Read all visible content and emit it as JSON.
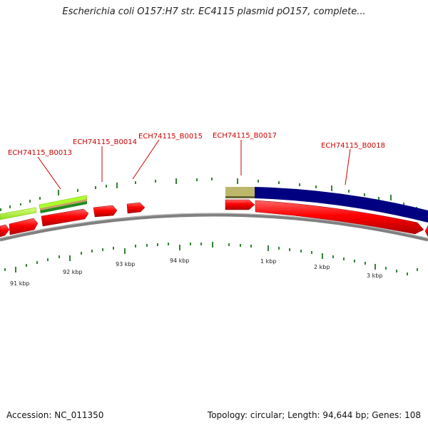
{
  "title": "Escherichia coli O157:H7 str. EC4115 plasmid pO157, complete...",
  "footer": {
    "accession": "Accession: NC_011350",
    "summary": "Topology: circular; Length: 94,644 bp; Genes: 108"
  },
  "genes": [
    {
      "id": "ECH74115_B0013"
    },
    {
      "id": "ECH74115_B0014"
    },
    {
      "id": "ECH74115_B0015"
    },
    {
      "id": "ECH74115_B0017"
    },
    {
      "id": "ECH74115_B0018"
    }
  ],
  "ticks": [
    {
      "label": "91 kbp"
    },
    {
      "label": "92 kbp"
    },
    {
      "label": "93 kbp"
    },
    {
      "label": "94 kbp"
    },
    {
      "label": "1 kbp"
    },
    {
      "label": "2 kbp"
    },
    {
      "label": "3 kbp"
    }
  ],
  "colors": {
    "cds": "#ff0000",
    "feature_navy": "#000080",
    "feature_tan": "#bdb76b",
    "feature_lime": "#adff2f",
    "backbone": "#808080",
    "tick": "#006400",
    "gene_label": "#cc0000"
  }
}
